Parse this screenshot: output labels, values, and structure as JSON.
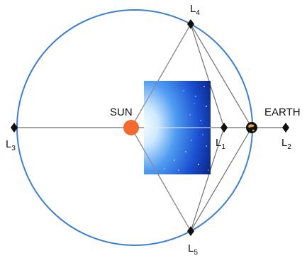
{
  "bodies": {
    "sun": {
      "label": "SUN",
      "color": "#f26a2e"
    },
    "earth": {
      "label": "EARTH",
      "color": "#111111",
      "highlight": "#e2a24a"
    }
  },
  "points": {
    "l1": {
      "letter": "L",
      "index": "1"
    },
    "l2": {
      "letter": "L",
      "index": "2"
    },
    "l3": {
      "letter": "L",
      "index": "3"
    },
    "l4": {
      "letter": "L",
      "index": "4"
    },
    "l5": {
      "letter": "L",
      "index": "5"
    }
  },
  "colors": {
    "orbit": "#3d7fd0",
    "lines": "#6e6e6e",
    "markers": "#111111",
    "inset_dark": "#0a1f7a",
    "inset_light": "#cfe9ff"
  }
}
